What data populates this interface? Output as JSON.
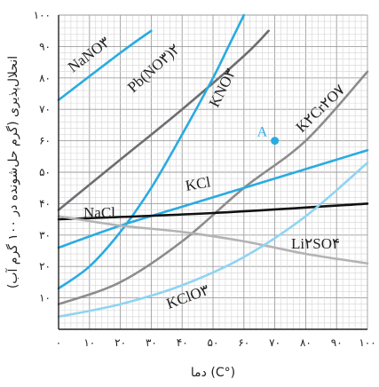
{
  "chart_data": {
    "type": "line",
    "xlabel": "(°C) دما",
    "ylabel": "انحلال‌پذیری (گرم حل‌شونده در ۱۰۰ گرم آب)",
    "xlim": [
      0,
      100
    ],
    "ylim": [
      0,
      100
    ],
    "x_ticks": [
      "۰",
      "۱۰",
      "۲۰",
      "۳۰",
      "۴۰",
      "۵۰",
      "۶۰",
      "۷۰",
      "۸۰",
      "۹۰",
      "۱۰۰"
    ],
    "y_ticks": [
      "۱۰",
      "۲۰",
      "۳۰",
      "۴۰",
      "۵۰",
      "۶۰",
      "۷۰",
      "۸۰",
      "۹۰",
      "۱۰۰"
    ],
    "grid": true,
    "series": [
      {
        "name": "NaNO۳",
        "color": "#29abe2",
        "x": [
          0,
          20,
          30
        ],
        "y": [
          73,
          88,
          95
        ]
      },
      {
        "name": "Pb(NO۳)۲",
        "color": "#6d6e71",
        "x": [
          0,
          20,
          40,
          60,
          68
        ],
        "y": [
          38,
          54,
          70,
          87,
          95
        ]
      },
      {
        "name": "KNO۳",
        "color": "#29abe2",
        "x": [
          0,
          10,
          20,
          30,
          40,
          50,
          55,
          60
        ],
        "y": [
          13,
          20,
          31,
          45,
          62,
          80,
          90,
          100
        ]
      },
      {
        "name": "K۲Cr۲O۷",
        "color": "#8c8c8c",
        "x": [
          0,
          20,
          40,
          60,
          80,
          100
        ],
        "y": [
          8,
          15,
          28,
          45,
          60,
          82
        ]
      },
      {
        "name": "KCl",
        "color": "#29abe2",
        "x": [
          0,
          20,
          40,
          60,
          80,
          100
        ],
        "y": [
          26,
          33,
          39,
          45,
          51,
          57
        ]
      },
      {
        "name": "NaCl",
        "color": "#111111",
        "x": [
          0,
          50,
          100
        ],
        "y": [
          35,
          37,
          40
        ]
      },
      {
        "name": "Li۲SO۴",
        "color": "#b3b3b3",
        "x": [
          0,
          20,
          40,
          60,
          80,
          100
        ],
        "y": [
          36,
          33,
          31,
          28,
          24,
          21
        ]
      },
      {
        "name": "KClO۳",
        "color": "#8fd4f2",
        "x": [
          0,
          20,
          40,
          60,
          80,
          100
        ],
        "y": [
          4,
          8,
          14,
          23,
          36,
          53
        ]
      }
    ],
    "points": [
      {
        "label": "A",
        "x": 70,
        "y": 60,
        "color": "#29abe2"
      }
    ]
  }
}
